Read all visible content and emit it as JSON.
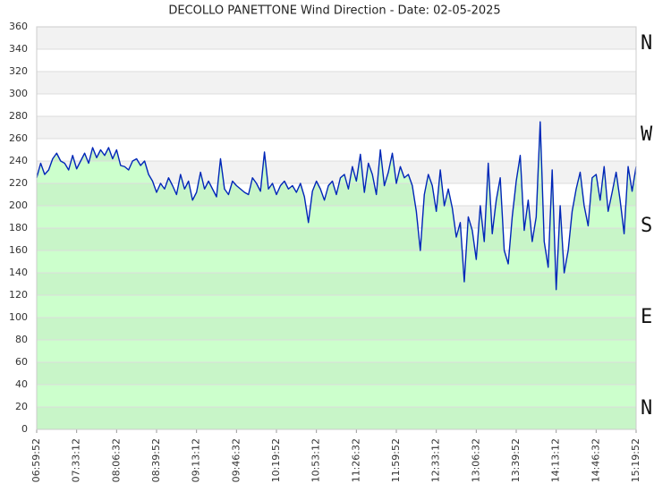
{
  "chart_data": {
    "type": "line",
    "title": "DECOLLO PANETTONE Wind Direction - Date: 02-05-2025",
    "x": [
      "06:59:52",
      "07:03:12",
      "07:06:32",
      "07:09:52",
      "07:13:12",
      "07:16:32",
      "07:19:52",
      "07:23:12",
      "07:26:32",
      "07:29:52",
      "07:33:12",
      "07:36:32",
      "07:39:52",
      "07:43:12",
      "07:46:32",
      "07:49:52",
      "07:53:12",
      "07:56:32",
      "07:59:52",
      "08:03:12",
      "08:06:32",
      "08:09:52",
      "08:13:12",
      "08:16:32",
      "08:19:52",
      "08:23:12",
      "08:26:32",
      "08:29:52",
      "08:33:12",
      "08:36:32",
      "08:39:52",
      "08:43:12",
      "08:46:32",
      "08:49:52",
      "08:53:12",
      "08:56:32",
      "08:59:52",
      "09:03:12",
      "09:06:32",
      "09:09:52",
      "09:13:12",
      "09:16:32",
      "09:19:52",
      "09:23:12",
      "09:26:32",
      "09:29:52",
      "09:33:12",
      "09:36:32",
      "09:39:52",
      "09:43:12",
      "09:46:32",
      "09:49:52",
      "09:53:12",
      "09:56:32",
      "09:59:52",
      "10:03:12",
      "10:06:32",
      "10:09:52",
      "10:13:12",
      "10:16:32",
      "10:19:52",
      "10:23:12",
      "10:26:32",
      "10:29:52",
      "10:33:12",
      "10:36:32",
      "10:39:52",
      "10:43:12",
      "10:46:32",
      "10:49:52",
      "10:53:12",
      "10:56:32",
      "10:59:52",
      "11:03:12",
      "11:06:32",
      "11:09:52",
      "11:13:12",
      "11:16:32",
      "11:19:52",
      "11:23:12",
      "11:26:32",
      "11:29:52",
      "11:33:12",
      "11:36:32",
      "11:39:52",
      "11:43:12",
      "11:46:32",
      "11:49:52",
      "11:53:12",
      "11:56:32",
      "11:59:52",
      "12:03:12",
      "12:06:32",
      "12:09:52",
      "12:13:12",
      "12:16:32",
      "12:19:52",
      "12:23:12",
      "12:26:32",
      "12:29:52",
      "12:33:12",
      "12:36:32",
      "12:39:52",
      "12:43:12",
      "12:46:32",
      "12:49:52",
      "12:53:12",
      "12:56:32",
      "12:59:52",
      "13:03:12",
      "13:06:32",
      "13:09:52",
      "13:13:12",
      "13:16:32",
      "13:19:52",
      "13:23:12",
      "13:26:32",
      "13:29:52",
      "13:33:12",
      "13:36:32",
      "13:39:52",
      "13:43:12",
      "13:46:32",
      "13:49:52",
      "13:53:12",
      "13:56:32",
      "13:59:52",
      "14:03:12",
      "14:06:32",
      "14:09:52",
      "14:13:12",
      "14:16:32",
      "14:19:52",
      "14:23:12",
      "14:26:32",
      "14:29:52",
      "14:33:12",
      "14:36:32",
      "14:39:52",
      "14:43:12",
      "14:46:32",
      "14:49:52",
      "14:53:12",
      "14:56:32",
      "14:59:52",
      "15:03:12",
      "15:06:32",
      "15:09:52",
      "15:13:12",
      "15:16:32",
      "15:19:52"
    ],
    "series": [
      {
        "color": "#0026b8",
        "values": [
          225,
          238,
          228,
          232,
          242,
          247,
          240,
          238,
          232,
          245,
          233,
          240,
          247,
          238,
          252,
          243,
          250,
          245,
          252,
          242,
          250,
          236,
          235,
          232,
          240,
          242,
          236,
          240,
          228,
          222,
          212,
          220,
          215,
          225,
          218,
          210,
          228,
          215,
          222,
          205,
          212,
          230,
          215,
          222,
          215,
          208,
          242,
          215,
          210,
          222,
          218,
          215,
          212,
          210,
          225,
          220,
          213,
          248,
          215,
          220,
          210,
          218,
          222,
          215,
          218,
          212,
          220,
          208,
          185,
          213,
          222,
          215,
          205,
          218,
          222,
          210,
          225,
          228,
          215,
          235,
          222,
          246,
          212,
          238,
          228,
          210,
          250,
          218,
          230,
          247,
          220,
          235,
          225,
          228,
          218,
          195,
          160,
          210,
          228,
          218,
          195,
          232,
          200,
          215,
          198,
          172,
          185,
          132,
          190,
          178,
          152,
          200,
          168,
          238,
          175,
          205,
          225,
          160,
          148,
          190,
          222,
          245,
          178,
          205,
          168,
          190,
          275,
          168,
          145,
          232,
          125,
          200,
          140,
          160,
          195,
          215,
          230,
          200,
          182,
          225,
          228,
          205,
          235,
          195,
          212,
          230,
          205,
          175,
          235,
          213,
          235
        ]
      }
    ],
    "xlim": [
      "06:59:52",
      "15:19:52"
    ],
    "xticks": [
      "06:59:52",
      "07:33:12",
      "08:06:32",
      "08:39:52",
      "09:13:12",
      "09:46:32",
      "10:19:52",
      "10:53:12",
      "11:26:32",
      "11:59:52",
      "12:33:12",
      "13:06:32",
      "13:39:52",
      "14:13:12",
      "14:46:32",
      "15:19:52"
    ],
    "ylim": [
      0,
      360
    ],
    "yticks": [
      0,
      20,
      40,
      60,
      80,
      100,
      120,
      140,
      160,
      180,
      200,
      220,
      240,
      260,
      280,
      300,
      320,
      340,
      360
    ],
    "grid": true,
    "compass_labels": [
      "N",
      "W",
      "S",
      "E",
      "N"
    ]
  }
}
